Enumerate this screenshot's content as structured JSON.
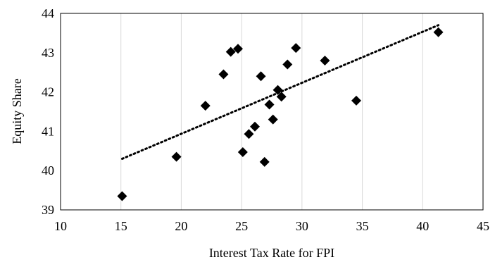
{
  "chart_data": {
    "type": "scatter",
    "title": "",
    "xlabel": "Interest Tax Rate for FPI",
    "ylabel": "Equity Share",
    "xlim": [
      10,
      45
    ],
    "ylim": [
      39,
      44
    ],
    "x_ticks": [
      10,
      15,
      20,
      25,
      30,
      35,
      40,
      45
    ],
    "y_ticks": [
      39,
      40,
      41,
      42,
      43,
      44
    ],
    "grid": "vertical",
    "legend": "none",
    "marker": "diamond",
    "marker_color": "#000000",
    "series": [
      {
        "points": [
          {
            "x": 15.1,
            "y": 39.35
          },
          {
            "x": 19.6,
            "y": 40.35
          },
          {
            "x": 22.0,
            "y": 41.65
          },
          {
            "x": 23.5,
            "y": 42.45
          },
          {
            "x": 24.1,
            "y": 43.02
          },
          {
            "x": 24.7,
            "y": 43.1
          },
          {
            "x": 25.1,
            "y": 40.47
          },
          {
            "x": 25.6,
            "y": 40.93
          },
          {
            "x": 26.1,
            "y": 41.12
          },
          {
            "x": 26.6,
            "y": 42.4
          },
          {
            "x": 26.9,
            "y": 40.22
          },
          {
            "x": 27.3,
            "y": 41.68
          },
          {
            "x": 27.6,
            "y": 41.3
          },
          {
            "x": 28.0,
            "y": 42.05
          },
          {
            "x": 28.3,
            "y": 41.88
          },
          {
            "x": 28.8,
            "y": 42.7
          },
          {
            "x": 29.5,
            "y": 43.12
          },
          {
            "x": 31.9,
            "y": 42.8
          },
          {
            "x": 34.5,
            "y": 41.78
          },
          {
            "x": 41.3,
            "y": 43.52
          }
        ]
      }
    ],
    "trendline": {
      "type": "linear",
      "style": "dotted",
      "from": {
        "x": 15.1,
        "y": 40.3
      },
      "to": {
        "x": 41.3,
        "y": 43.7
      }
    }
  }
}
